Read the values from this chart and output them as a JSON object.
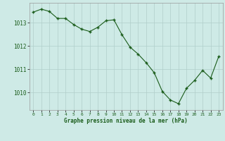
{
  "x": [
    0,
    1,
    2,
    3,
    4,
    5,
    6,
    7,
    8,
    9,
    10,
    11,
    12,
    13,
    14,
    15,
    16,
    17,
    18,
    19,
    20,
    21,
    22,
    23
  ],
  "y": [
    1013.45,
    1013.58,
    1013.48,
    1013.18,
    1013.18,
    1012.92,
    1012.72,
    1012.62,
    1012.8,
    1013.08,
    1013.12,
    1012.48,
    1011.95,
    1011.65,
    1011.28,
    1010.85,
    1010.05,
    1009.68,
    1009.52,
    1010.18,
    1010.52,
    1010.95,
    1010.62,
    1011.55
  ],
  "xlim": [
    -0.5,
    23.5
  ],
  "ylim": [
    1009.25,
    1013.85
  ],
  "yticks": [
    1010,
    1011,
    1012,
    1013
  ],
  "xticks": [
    0,
    1,
    2,
    3,
    4,
    5,
    6,
    7,
    8,
    9,
    10,
    11,
    12,
    13,
    14,
    15,
    16,
    17,
    18,
    19,
    20,
    21,
    22,
    23
  ],
  "bg_color": "#ceeae6",
  "line_color": "#1a5c1a",
  "grid_color": "#b0ceca",
  "label_color": "#1a5c1a",
  "xlabel": "Graphe pression niveau de la mer (hPa)",
  "figsize": [
    3.2,
    2.0
  ],
  "dpi": 100
}
